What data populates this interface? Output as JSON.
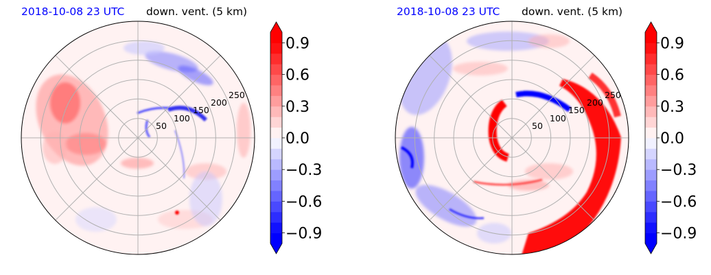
{
  "chart_data": [
    {
      "type": "heatmap",
      "projection": "polar",
      "title_date": "2018-10-08 23 UTC",
      "title_var": "down. vent. (5 km)",
      "radial_ticks": [
        "50",
        "100",
        "150",
        "200",
        "250"
      ],
      "colorbar": {
        "ticks": [
          "0.9",
          "0.6",
          "0.3",
          "0.0",
          "−0.3",
          "−0.6",
          "−0.9"
        ],
        "tick_values": [
          0.9,
          0.6,
          0.3,
          0.0,
          -0.3,
          -0.6,
          -0.9
        ],
        "range": [
          -1.0,
          1.0
        ],
        "extend": "both",
        "colormap": "bwr"
      },
      "grid": true
    },
    {
      "type": "heatmap",
      "projection": "polar",
      "title_date": "2018-10-08 23 UTC",
      "title_var": "down. vent. (5 km)",
      "radial_ticks": [
        "50",
        "100",
        "150",
        "200",
        "250"
      ],
      "colorbar": {
        "ticks": [
          "0.9",
          "0.6",
          "0.3",
          "0.0",
          "−0.3",
          "−0.6",
          "−0.9"
        ],
        "tick_values": [
          0.9,
          0.6,
          0.3,
          0.0,
          -0.3,
          -0.6,
          -0.9
        ],
        "range": [
          -1.0,
          1.0
        ],
        "extend": "both",
        "colormap": "bwr"
      },
      "grid": true
    }
  ],
  "colors": {
    "title_date": "#0000ff",
    "positive": "#ff0000",
    "negative": "#0000ff",
    "grid": "#b0b0b0"
  }
}
